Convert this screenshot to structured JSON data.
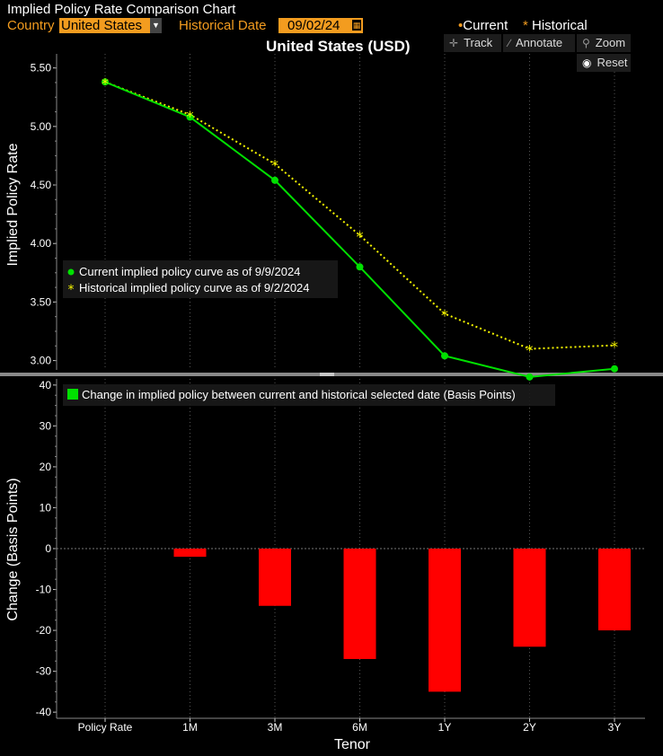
{
  "app": {
    "title": "Implied Policy Rate Comparison Chart",
    "country_label": "Country",
    "country_value": "United States",
    "hist_label": "Historical Date",
    "hist_value": "09/02/24",
    "legend_current": "Current",
    "legend_historical": "Historical",
    "chart_title": "United States (USD)"
  },
  "toolbar": {
    "track": "Track",
    "annotate": "Annotate",
    "zoom": "Zoom",
    "reset": "Reset"
  },
  "colors": {
    "current": "#00e000",
    "historical": "#f5f500",
    "bars": "#ff0000",
    "accent": "#f39c1f"
  },
  "chart_data": [
    {
      "type": "line",
      "categories": [
        "Policy Rate",
        "1M",
        "3M",
        "6M",
        "1Y",
        "2Y",
        "3Y"
      ],
      "ylabel": "Implied Policy Rate",
      "ylim": [
        2.92,
        5.62
      ],
      "yticks": [
        "3.00",
        "3.50",
        "4.00",
        "4.50",
        "5.00",
        "5.50"
      ],
      "series": [
        {
          "name": "Current implied policy curve as of 9/9/2024",
          "values": [
            5.38,
            5.08,
            4.54,
            3.8,
            3.04,
            2.86,
            2.93
          ]
        },
        {
          "name": "Historical implied policy curve as of 9/2/2024",
          "values": [
            5.38,
            5.1,
            4.68,
            4.07,
            3.4,
            3.1,
            3.13
          ]
        }
      ]
    },
    {
      "type": "bar",
      "categories": [
        "Policy Rate",
        "1M",
        "3M",
        "6M",
        "1Y",
        "2Y",
        "3Y"
      ],
      "xlabel": "Tenor",
      "ylabel": "Change (Basis Points)",
      "ylim": [
        -41.5,
        41.5
      ],
      "yticks": [
        "-40",
        "-30",
        "-20",
        "-10",
        "0",
        "10",
        "20",
        "30",
        "40"
      ],
      "series": [
        {
          "name": "Change in implied policy between current and historical selected date (Basis Points)",
          "values": [
            0,
            -2,
            -14,
            -27,
            -35,
            -24,
            -20
          ]
        }
      ]
    }
  ]
}
